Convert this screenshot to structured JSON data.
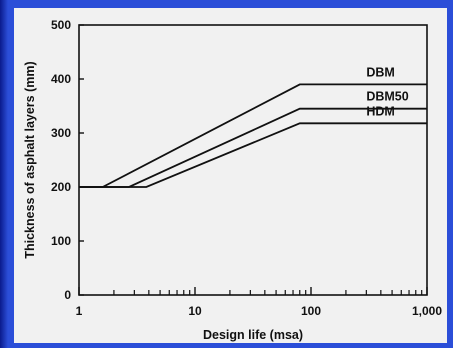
{
  "colors": {
    "background": "#2b4ed8",
    "panel": "#f1f1f1",
    "ink": "#111111"
  },
  "chart_data": {
    "type": "line",
    "title": "",
    "xlabel": "Design life (msa)",
    "ylabel": "Thickness of asphalt layers (mm)",
    "x_scale": "log",
    "xlim": [
      1,
      1000
    ],
    "ylim": [
      0,
      500
    ],
    "x_ticks": [
      1,
      10,
      100,
      1000
    ],
    "x_tick_labels": [
      "1",
      "10",
      "100",
      "1,000"
    ],
    "y_ticks": [
      0,
      100,
      200,
      300,
      400,
      500
    ],
    "y_tick_labels": [
      "0",
      "100",
      "200",
      "300",
      "400",
      "500"
    ],
    "grid": false,
    "legend": "labels at right end of each line",
    "series": [
      {
        "name": "DBM",
        "x": [
          1,
          1.6,
          80,
          1000
        ],
        "y": [
          200,
          200,
          390,
          390
        ]
      },
      {
        "name": "DBM50",
        "x": [
          1,
          2.7,
          80,
          1000
        ],
        "y": [
          200,
          200,
          345,
          345
        ]
      },
      {
        "name": "HDM",
        "x": [
          1,
          3.8,
          80,
          1000
        ],
        "y": [
          200,
          200,
          318,
          318
        ]
      }
    ]
  }
}
